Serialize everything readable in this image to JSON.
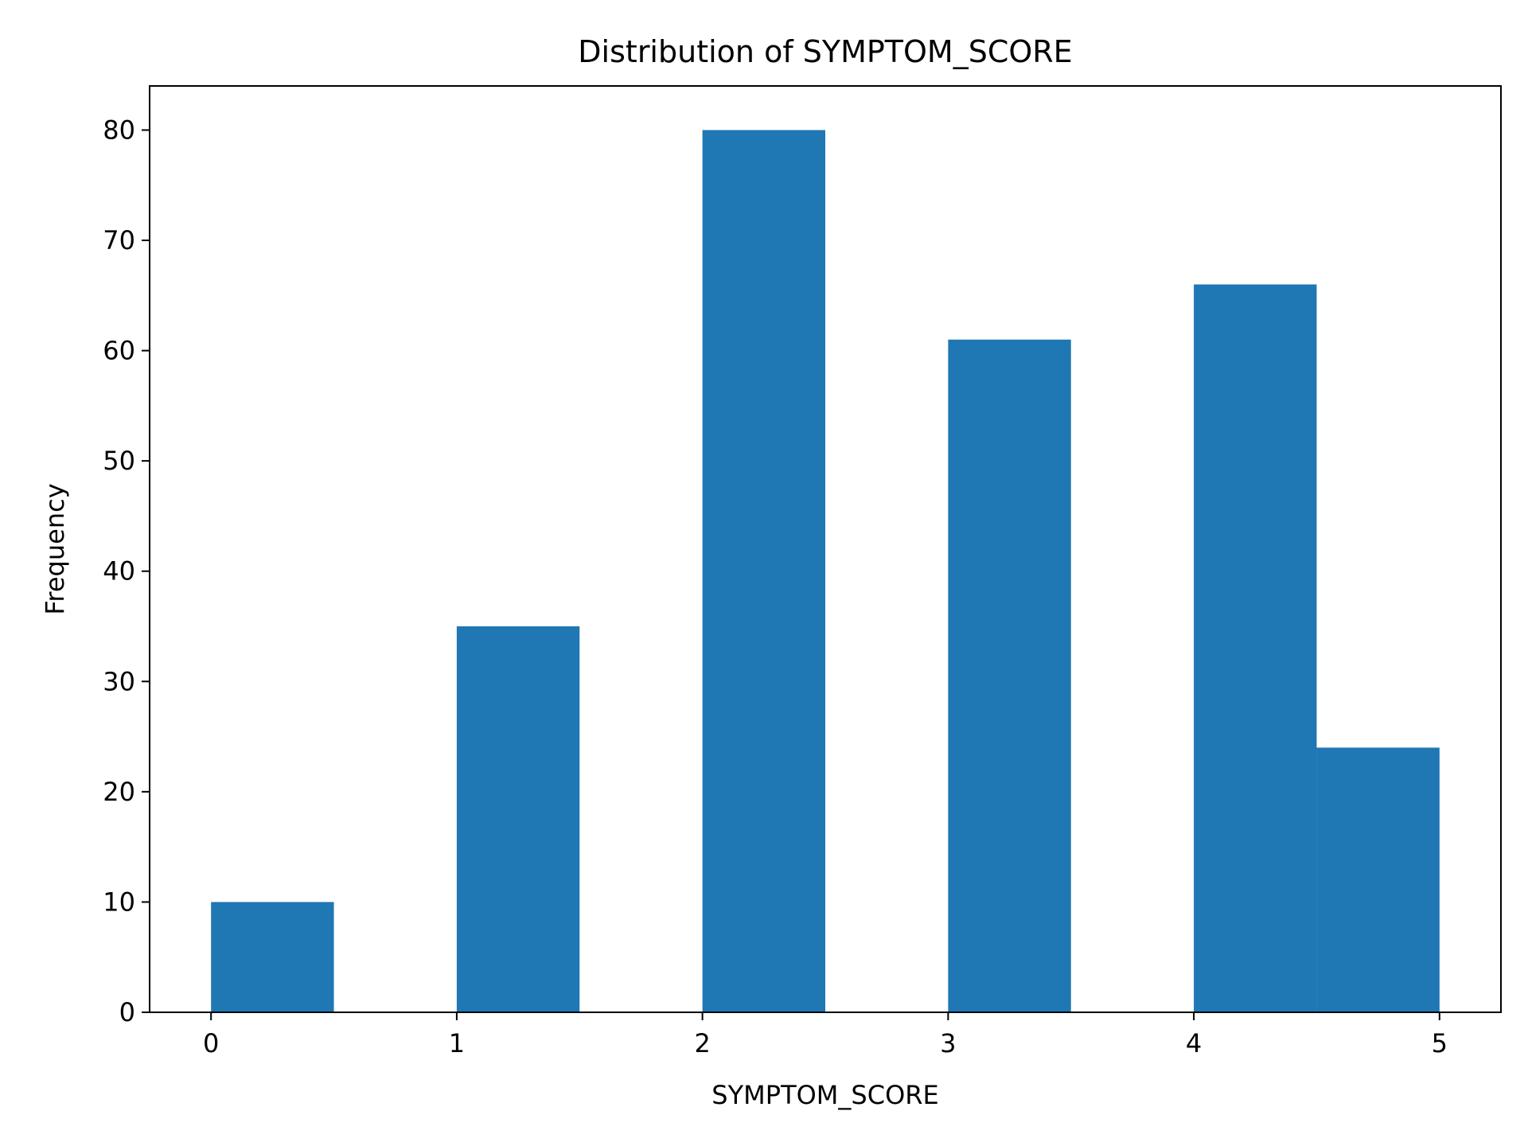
{
  "chart_data": {
    "type": "bar",
    "title": "Distribution of SYMPTOM_SCORE",
    "xlabel": "SYMPTOM_SCORE",
    "ylabel": "Frequency",
    "xlim": [
      -0.25,
      5.25
    ],
    "ylim": [
      0,
      84
    ],
    "xticks": [
      0,
      1,
      2,
      3,
      4,
      5
    ],
    "yticks": [
      0,
      10,
      20,
      30,
      40,
      50,
      60,
      70,
      80
    ],
    "bins": [
      {
        "start": 0.0,
        "end": 0.5,
        "value": 10
      },
      {
        "start": 0.5,
        "end": 1.0,
        "value": 0
      },
      {
        "start": 1.0,
        "end": 1.5,
        "value": 35
      },
      {
        "start": 1.5,
        "end": 2.0,
        "value": 0
      },
      {
        "start": 2.0,
        "end": 2.5,
        "value": 80
      },
      {
        "start": 2.5,
        "end": 3.0,
        "value": 0
      },
      {
        "start": 3.0,
        "end": 3.5,
        "value": 61
      },
      {
        "start": 3.5,
        "end": 4.0,
        "value": 0
      },
      {
        "start": 4.0,
        "end": 4.5,
        "value": 66
      },
      {
        "start": 4.5,
        "end": 5.0,
        "value": 24
      }
    ],
    "bar_color": "#1f77b4",
    "grid": false,
    "legend": "none"
  }
}
